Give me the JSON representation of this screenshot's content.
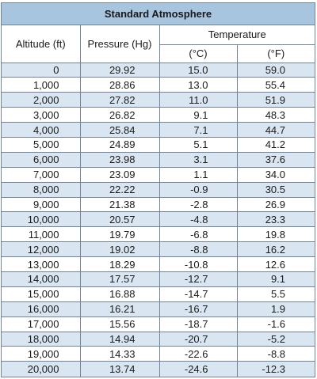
{
  "title": "Standard Atmosphere",
  "headers": {
    "altitude": "Altitude (ft)",
    "pressure": "Pressure (Hg)",
    "temperature": "Temperature",
    "celsius": "(°C)",
    "fahrenheit": "(°F)"
  },
  "rows": [
    {
      "altitude": "0",
      "pressure": "29.92",
      "temp_c": "15.0",
      "temp_f": "59.0"
    },
    {
      "altitude": "1,000",
      "pressure": "28.86",
      "temp_c": "13.0",
      "temp_f": "55.4"
    },
    {
      "altitude": "2,000",
      "pressure": "27.82",
      "temp_c": "11.0",
      "temp_f": "51.9"
    },
    {
      "altitude": "3,000",
      "pressure": "26.82",
      "temp_c": "9.1",
      "temp_f": "48.3"
    },
    {
      "altitude": "4,000",
      "pressure": "25.84",
      "temp_c": "7.1",
      "temp_f": "44.7"
    },
    {
      "altitude": "5,000",
      "pressure": "24.89",
      "temp_c": "5.1",
      "temp_f": "41.2"
    },
    {
      "altitude": "6,000",
      "pressure": "23.98",
      "temp_c": "3.1",
      "temp_f": "37.6"
    },
    {
      "altitude": "7,000",
      "pressure": "23.09",
      "temp_c": "1.1",
      "temp_f": "34.0"
    },
    {
      "altitude": "8,000",
      "pressure": "22.22",
      "temp_c": "-0.9",
      "temp_f": "30.5"
    },
    {
      "altitude": "9,000",
      "pressure": "21.38",
      "temp_c": "-2.8",
      "temp_f": "26.9"
    },
    {
      "altitude": "10,000",
      "pressure": "20.57",
      "temp_c": "-4.8",
      "temp_f": "23.3"
    },
    {
      "altitude": "11,000",
      "pressure": "19.79",
      "temp_c": "-6.8",
      "temp_f": "19.8"
    },
    {
      "altitude": "12,000",
      "pressure": "19.02",
      "temp_c": "-8.8",
      "temp_f": "16.2"
    },
    {
      "altitude": "13,000",
      "pressure": "18.29",
      "temp_c": "-10.8",
      "temp_f": "12.6"
    },
    {
      "altitude": "14,000",
      "pressure": "17.57",
      "temp_c": "-12.7",
      "temp_f": "9.1"
    },
    {
      "altitude": "15,000",
      "pressure": "16.88",
      "temp_c": "-14.7",
      "temp_f": "5.5"
    },
    {
      "altitude": "16,000",
      "pressure": "16.21",
      "temp_c": "-16.7",
      "temp_f": "1.9"
    },
    {
      "altitude": "17,000",
      "pressure": "15.56",
      "temp_c": "-18.7",
      "temp_f": "-1.6"
    },
    {
      "altitude": "18,000",
      "pressure": "14.94",
      "temp_c": "-20.7",
      "temp_f": "-5.2"
    },
    {
      "altitude": "19,000",
      "pressure": "14.33",
      "temp_c": "-22.6",
      "temp_f": "-8.8"
    },
    {
      "altitude": "20,000",
      "pressure": "13.74",
      "temp_c": "-24.6",
      "temp_f": "-12.3"
    }
  ],
  "colors": {
    "title_bg": "#a8c5e0",
    "stripe_bg": "#d9e6f2",
    "grid_line": "#6f8498"
  }
}
